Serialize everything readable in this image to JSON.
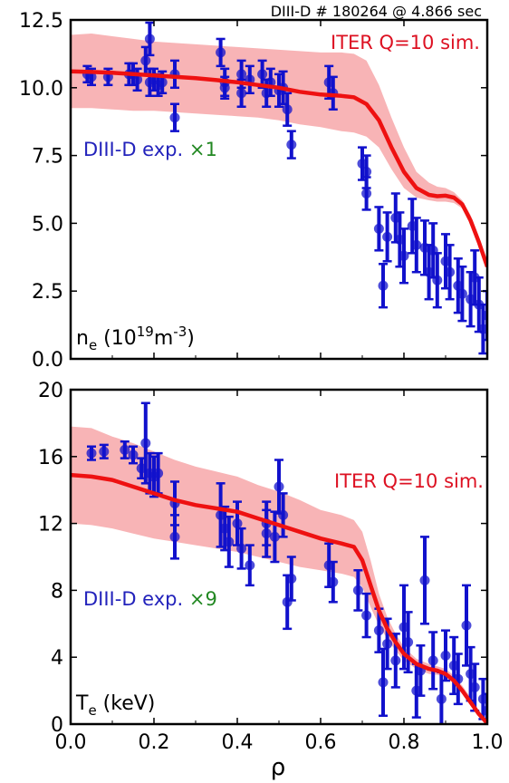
{
  "figure": {
    "title": "DIII-D # 180264 @ 4.866 sec",
    "xlabel": "ρ"
  },
  "colors": {
    "sim_line": "#ee1111",
    "sim_band": "#f7a7a9",
    "sim_text": "#dd1122",
    "exp_points": "#1111cc",
    "exp_text_main": "#2222bb",
    "exp_text_factor": "#228822"
  },
  "chart_data": [
    {
      "type": "line",
      "panel": "top",
      "quantity_label": {
        "base": "n",
        "sub": "e",
        "text": " (10",
        "sup": "19",
        "unit": "m",
        "unit_sup": "-3",
        "close": ")"
      },
      "sim_label": "ITER Q=10 sim.",
      "exp_label": "DIII-D exp.",
      "exp_factor": "×1",
      "xlim": [
        0.0,
        1.0
      ],
      "ylim": [
        0.0,
        12.5
      ],
      "xticks": [
        "0.0",
        "0.2",
        "0.4",
        "0.6",
        "0.8",
        "1.0"
      ],
      "yticks": [
        "0.0",
        "2.5",
        "5.0",
        "7.5",
        "10.0",
        "12.5"
      ],
      "grid": false,
      "series": [
        {
          "name": "ITER Q=10 sim.",
          "x": [
            0.0,
            0.05,
            0.1,
            0.15,
            0.2,
            0.25,
            0.3,
            0.35,
            0.4,
            0.45,
            0.5,
            0.55,
            0.6,
            0.65,
            0.68,
            0.71,
            0.74,
            0.77,
            0.8,
            0.83,
            0.86,
            0.88,
            0.9,
            0.92,
            0.94,
            0.96,
            0.98,
            1.0
          ],
          "y": [
            10.6,
            10.58,
            10.55,
            10.5,
            10.45,
            10.4,
            10.35,
            10.28,
            10.2,
            10.1,
            10.0,
            9.85,
            9.75,
            9.7,
            9.65,
            9.4,
            8.8,
            7.8,
            6.9,
            6.3,
            6.05,
            6.0,
            6.02,
            5.95,
            5.7,
            5.1,
            4.3,
            3.4
          ],
          "band_upper": [
            11.95,
            12.0,
            11.9,
            11.8,
            11.7,
            11.65,
            11.6,
            11.55,
            11.5,
            11.45,
            11.4,
            11.35,
            11.3,
            11.3,
            11.25,
            11.0,
            10.1,
            8.9,
            7.8,
            6.9,
            6.5,
            6.35,
            6.3,
            6.15,
            5.85,
            5.3,
            4.5,
            3.6
          ],
          "band_lower": [
            9.25,
            9.25,
            9.2,
            9.15,
            9.15,
            9.1,
            9.05,
            9.0,
            8.95,
            8.9,
            8.8,
            8.65,
            8.55,
            8.4,
            8.35,
            8.2,
            7.8,
            7.0,
            6.3,
            5.95,
            5.85,
            5.8,
            5.8,
            5.75,
            5.55,
            5.0,
            4.2,
            3.3
          ]
        },
        {
          "name": "DIII-D exp.",
          "x": [
            0.04,
            0.05,
            0.09,
            0.14,
            0.15,
            0.16,
            0.18,
            0.19,
            0.19,
            0.2,
            0.21,
            0.22,
            0.25,
            0.25,
            0.36,
            0.37,
            0.37,
            0.41,
            0.41,
            0.43,
            0.46,
            0.47,
            0.48,
            0.5,
            0.51,
            0.52,
            0.53,
            0.62,
            0.63,
            0.7,
            0.71,
            0.71,
            0.74,
            0.75,
            0.76,
            0.78,
            0.79,
            0.8,
            0.82,
            0.83,
            0.85,
            0.86,
            0.87,
            0.88,
            0.9,
            0.91,
            0.93,
            0.94,
            0.96,
            0.97,
            0.98,
            0.99,
            1.0
          ],
          "y": [
            10.5,
            10.4,
            10.4,
            10.5,
            10.5,
            10.3,
            11.0,
            11.8,
            10.2,
            10.3,
            10.1,
            10.2,
            10.5,
            8.9,
            11.3,
            10.2,
            10.0,
            10.5,
            9.8,
            10.3,
            10.5,
            9.8,
            10.2,
            9.9,
            10.0,
            9.2,
            7.9,
            10.2,
            9.8,
            7.2,
            6.9,
            6.1,
            4.8,
            2.7,
            4.5,
            5.2,
            4.4,
            3.8,
            4.9,
            4.2,
            4.1,
            3.2,
            4.0,
            2.9,
            3.6,
            3.2,
            2.7,
            2.4,
            2.2,
            3.0,
            2.0,
            1.1,
            1.6
          ],
          "yerr": [
            0.3,
            0.3,
            0.3,
            0.4,
            0.4,
            0.4,
            0.5,
            0.6,
            0.5,
            0.4,
            0.4,
            0.4,
            0.5,
            0.5,
            0.5,
            0.5,
            0.4,
            0.5,
            0.5,
            0.5,
            0.5,
            0.5,
            0.5,
            0.6,
            0.6,
            0.6,
            0.5,
            0.6,
            0.6,
            0.6,
            0.6,
            0.6,
            0.8,
            0.8,
            0.9,
            0.9,
            1.0,
            1.0,
            1.0,
            1.0,
            1.0,
            1.0,
            1.0,
            1.0,
            1.0,
            1.0,
            1.0,
            1.0,
            1.0,
            1.0,
            1.0,
            0.9,
            0.9
          ]
        }
      ]
    },
    {
      "type": "line",
      "panel": "bottom",
      "quantity_label": {
        "base": "T",
        "sub": "e",
        "text": " (keV)"
      },
      "sim_label": "ITER Q=10 sim.",
      "exp_label": "DIII-D exp.",
      "exp_factor": "×9",
      "xlim": [
        0.0,
        1.0
      ],
      "ylim": [
        0,
        20
      ],
      "xticks": [
        "0.0",
        "0.2",
        "0.4",
        "0.6",
        "0.8",
        "1.0"
      ],
      "yticks": [
        "0",
        "4",
        "8",
        "12",
        "16",
        "20"
      ],
      "grid": false,
      "series": [
        {
          "name": "ITER Q=10 sim.",
          "x": [
            0.0,
            0.05,
            0.1,
            0.15,
            0.2,
            0.25,
            0.3,
            0.35,
            0.4,
            0.45,
            0.5,
            0.55,
            0.6,
            0.65,
            0.68,
            0.7,
            0.72,
            0.74,
            0.76,
            0.78,
            0.8,
            0.83,
            0.86,
            0.88,
            0.9,
            0.92,
            0.94,
            0.96,
            0.98,
            1.0
          ],
          "y": [
            14.9,
            14.8,
            14.6,
            14.2,
            13.8,
            13.4,
            13.1,
            12.9,
            12.7,
            12.3,
            11.9,
            11.5,
            11.1,
            10.8,
            10.6,
            9.8,
            8.3,
            6.8,
            5.7,
            4.9,
            4.2,
            3.6,
            3.3,
            3.2,
            3.0,
            2.6,
            2.0,
            1.3,
            0.6,
            0.05
          ],
          "band_upper": [
            17.8,
            17.7,
            17.2,
            16.8,
            16.3,
            15.8,
            15.4,
            15.1,
            14.8,
            14.3,
            13.9,
            13.4,
            12.8,
            12.5,
            12.2,
            11.5,
            9.8,
            7.8,
            6.4,
            5.4,
            4.6,
            3.9,
            3.6,
            3.45,
            3.3,
            2.9,
            2.3,
            1.6,
            0.8,
            0.15
          ],
          "band_lower": [
            12.0,
            11.9,
            11.7,
            11.4,
            11.1,
            10.9,
            10.7,
            10.5,
            10.3,
            10.0,
            9.7,
            9.4,
            9.2,
            9.0,
            8.8,
            8.2,
            7.0,
            5.9,
            5.1,
            4.4,
            3.8,
            3.3,
            3.0,
            2.95,
            2.8,
            2.4,
            1.8,
            1.1,
            0.45,
            0.0
          ]
        },
        {
          "name": "DIII-D exp.",
          "x": [
            0.05,
            0.08,
            0.13,
            0.15,
            0.17,
            0.18,
            0.19,
            0.2,
            0.21,
            0.25,
            0.25,
            0.36,
            0.37,
            0.38,
            0.4,
            0.41,
            0.43,
            0.47,
            0.47,
            0.49,
            0.5,
            0.51,
            0.52,
            0.53,
            0.62,
            0.63,
            0.69,
            0.71,
            0.74,
            0.75,
            0.76,
            0.78,
            0.8,
            0.81,
            0.83,
            0.84,
            0.85,
            0.87,
            0.89,
            0.9,
            0.92,
            0.93,
            0.95,
            0.96,
            0.97,
            0.99,
            1.0
          ],
          "y": [
            16.2,
            16.3,
            16.4,
            16.1,
            15.3,
            16.8,
            15.0,
            14.8,
            15.0,
            13.2,
            11.2,
            12.5,
            11.7,
            10.9,
            12.0,
            10.5,
            9.5,
            11.4,
            12.0,
            11.2,
            14.2,
            12.5,
            7.3,
            8.7,
            9.5,
            8.5,
            8.0,
            6.5,
            5.6,
            2.5,
            4.8,
            3.8,
            5.8,
            4.9,
            2.0,
            3.2,
            8.6,
            3.8,
            1.5,
            4.1,
            3.5,
            2.7,
            5.9,
            3.0,
            2.2,
            1.5,
            0.8
          ],
          "yerr": [
            0.4,
            0.4,
            0.5,
            0.5,
            0.6,
            2.4,
            1.2,
            1.2,
            1.2,
            1.3,
            1.3,
            1.9,
            1.3,
            1.5,
            1.3,
            1.2,
            1.2,
            1.4,
            1.3,
            1.5,
            1.6,
            1.3,
            1.6,
            1.3,
            1.3,
            1.2,
            1.2,
            1.3,
            1.3,
            2.0,
            1.5,
            1.6,
            2.5,
            1.8,
            1.6,
            1.5,
            2.6,
            1.7,
            1.6,
            1.5,
            1.7,
            1.5,
            2.4,
            1.6,
            1.4,
            1.2,
            1.0
          ]
        }
      ]
    }
  ]
}
